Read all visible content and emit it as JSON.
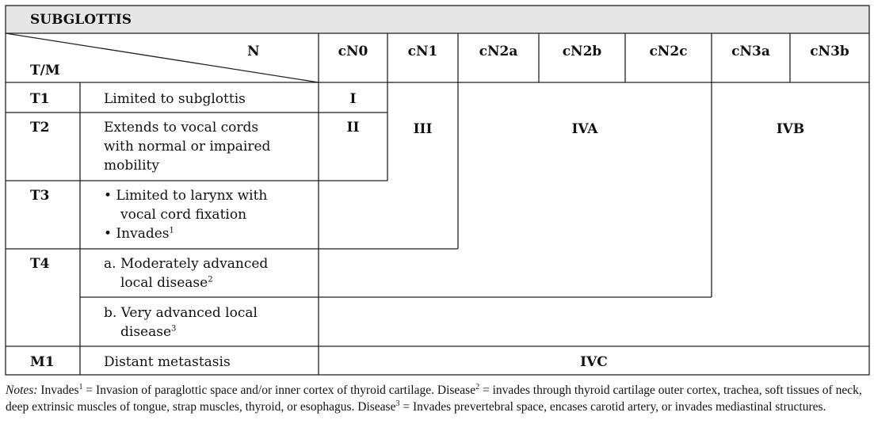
{
  "title": "SUBGLOTTIS",
  "header": {
    "n_label": "N",
    "tm_label": "T/M",
    "columns": [
      "cN0",
      "cN1",
      "cN2a",
      "cN2b",
      "cN2c",
      "cN3a",
      "cN3b"
    ]
  },
  "rows": {
    "t1": {
      "code": "T1",
      "desc": "Limited to subglottis"
    },
    "t2": {
      "code": "T2",
      "desc": [
        "Extends to vocal cords",
        "with normal or impaired",
        "mobility"
      ]
    },
    "t3": {
      "code": "T3",
      "desc": [
        "• Limited to larynx with",
        "vocal cord fixation",
        "• Invades"
      ],
      "sup": "1"
    },
    "t4": {
      "code": "T4",
      "a": [
        "a. Moderately advanced",
        "local disease"
      ],
      "a_sup": "2",
      "b": [
        "b. Very advanced local",
        "disease"
      ],
      "b_sup": "3"
    },
    "m1": {
      "code": "M1",
      "desc": "Distant metastasis"
    }
  },
  "stages": {
    "s1": "I",
    "s2": "II",
    "s3": "III",
    "s4a": "IVA",
    "s4b": "IVB",
    "s4c": "IVC"
  },
  "notes": {
    "label": "Notes:",
    "invades_word": "Invades",
    "invades_def": "= Invasion of paraglottic space and/or inner cortex of thyroid cartilage.",
    "disease2_word": "Disease",
    "disease2_def": "= invades through thyroid cartilage outer cortex, trachea, soft tissues of neck, deep extrinsic muscles of tongue, strap muscles, thyroid, or esophagus.",
    "disease3_word": "Disease",
    "disease3_def": "= Invades prevertebral space, encases carotid artery, or invades mediastinal structures.",
    "sup1": "1",
    "sup2": "2",
    "sup3": "3"
  },
  "colors": {
    "title_bg": "#e6e6e6",
    "rule": "#222222"
  }
}
